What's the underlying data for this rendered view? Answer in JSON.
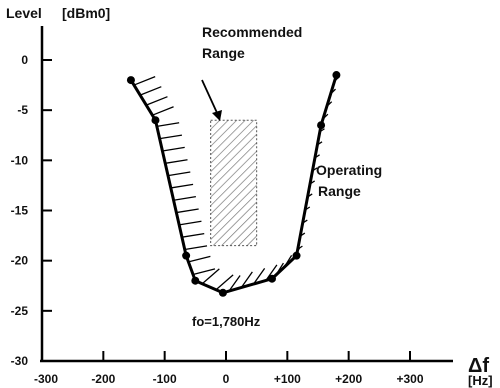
{
  "chart_data": {
    "type": "line",
    "ylabel": "Level",
    "ylabel_unit": "[dBm0]",
    "xlabel": "Δf",
    "xlabel_unit": "[Hz]",
    "xlim": [
      -300,
      300
    ],
    "ylim": [
      -30,
      0
    ],
    "x_ticks": [
      -300,
      -200,
      -100,
      0,
      100,
      200,
      300
    ],
    "x_tick_labels": [
      "-300",
      "-200",
      "-100",
      "0",
      "+100",
      "+200",
      "+300"
    ],
    "y_ticks": [
      0,
      -5,
      -10,
      -15,
      -20,
      -25,
      -30
    ],
    "y_tick_labels": [
      "0",
      "-5",
      "-10",
      "-15",
      "-20",
      "-25",
      "-30"
    ],
    "grid": false,
    "series": [
      {
        "values_x": [
          -155,
          -115,
          -65,
          -50,
          -5,
          75,
          115,
          155,
          180
        ],
        "values_y": [
          -2,
          -6,
          -19.5,
          -22,
          -23.2,
          -21.8,
          -19.5,
          -6.5,
          -1.5
        ]
      }
    ],
    "recommended_range": {
      "x": [
        -25,
        50
      ],
      "y": [
        -18.5,
        -6
      ]
    },
    "annotations": {
      "recommended": [
        "Recommended",
        "Range"
      ],
      "operating": [
        "Operating",
        "Range"
      ],
      "center_frequency": "fo=1,780Hz"
    }
  }
}
